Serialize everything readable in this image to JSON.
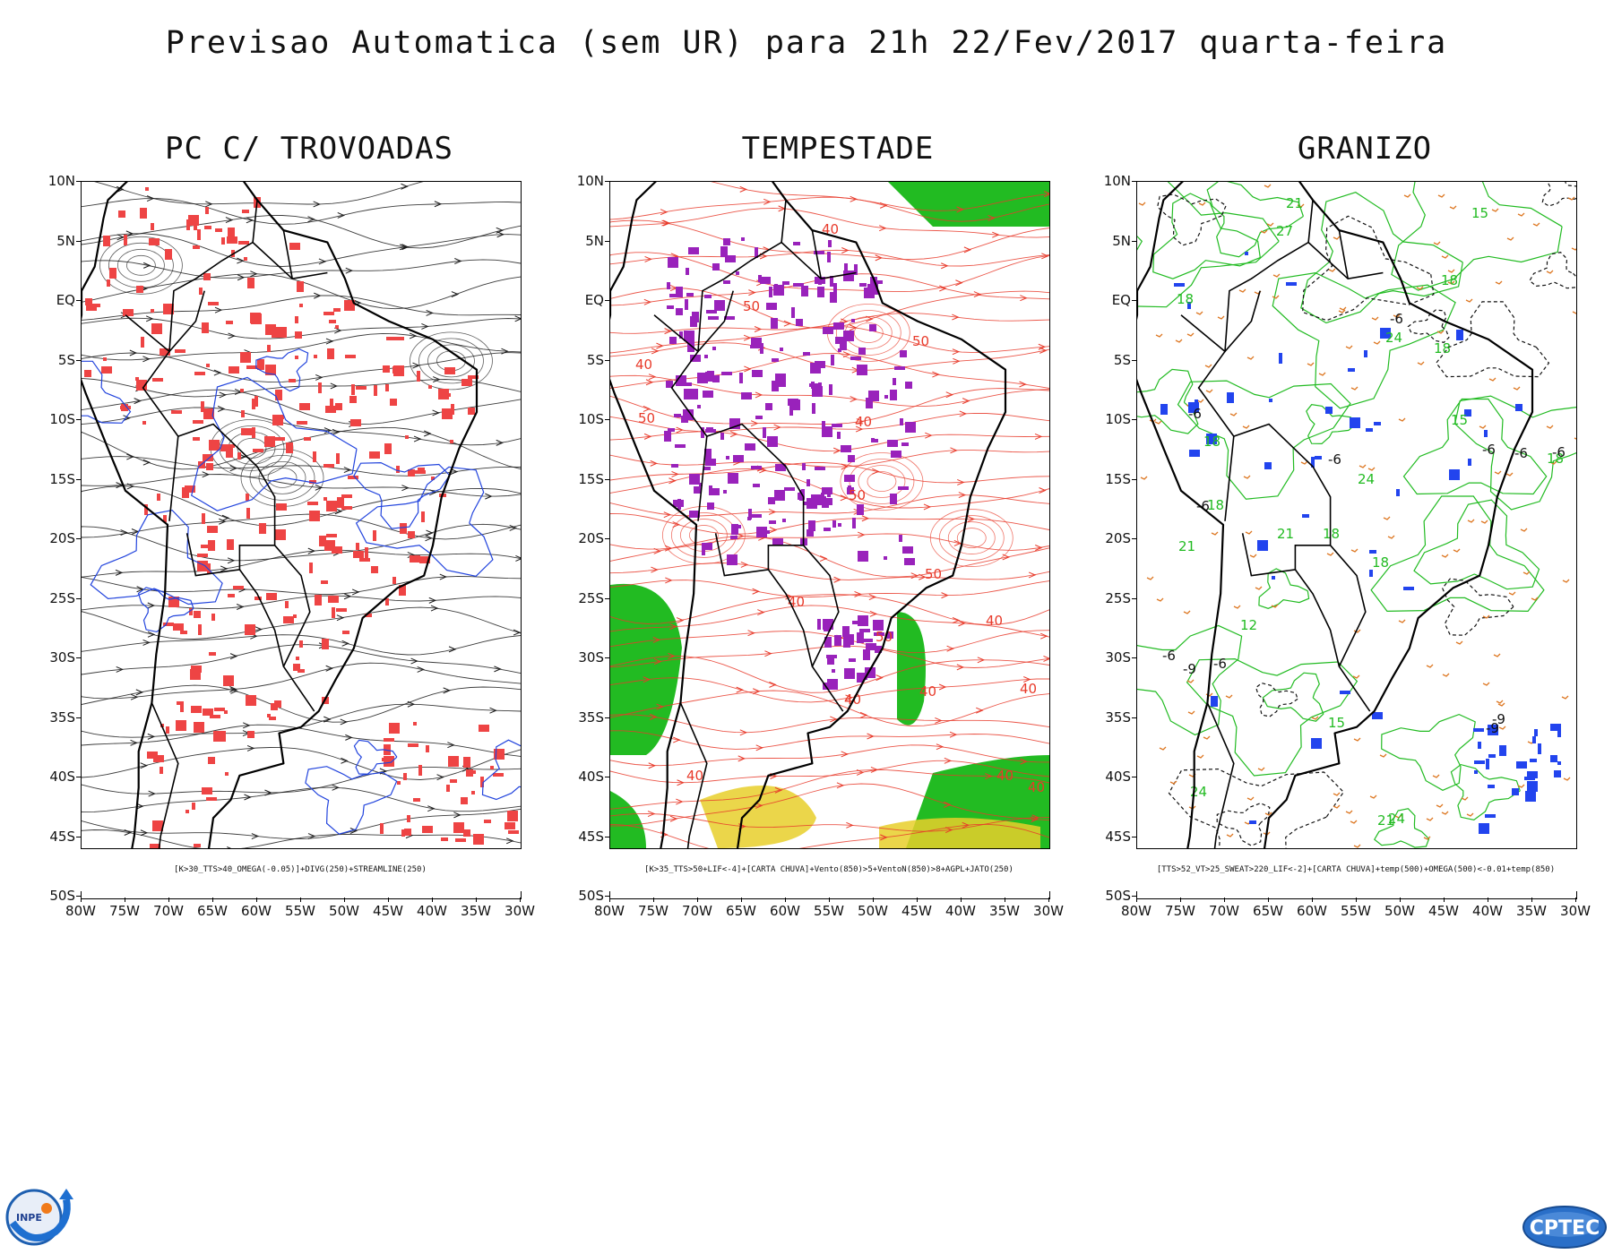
{
  "header": {
    "title": "Previsao Automatica (sem UR) para 21h 22/Fev/2017 quarta-feira"
  },
  "axes": {
    "lat_labels": [
      "10N",
      "5N",
      "EQ",
      "5S",
      "10S",
      "15S",
      "20S",
      "25S",
      "30S",
      "35S",
      "40S",
      "45S",
      "50S"
    ],
    "lon_labels": [
      "80W",
      "75W",
      "70W",
      "65W",
      "60W",
      "55W",
      "50W",
      "45W",
      "40W",
      "35W",
      "30W"
    ]
  },
  "panels": [
    {
      "title": "PC C/ TROVOADAS",
      "caption": "[K>30_TTS>40_OMEGA(-0.05)]+DIVG(250)+STREAMLINE(250)",
      "style": {
        "background": "#ffffff",
        "line_color": "#1a1a1a",
        "blob_color": "#ee4444",
        "aux_color": "#2244dd"
      },
      "contour_labels": []
    },
    {
      "title": "TEMPESTADE",
      "caption": "[K>35_TTS>50+LIF<-4]+[CARTA CHUVA]+Vento(850)>5+VentoN(850)>8+AGPL+JATO(250)",
      "style": {
        "background": "#ffffff",
        "line_color": "#e83a2a",
        "blob_color": "#9922bb",
        "aux_color": "#22bb22"
      },
      "contour_labels": [
        "50",
        "40",
        "50",
        "40",
        "50",
        "50",
        "40",
        "40",
        "50",
        "40",
        "40",
        "40",
        "40",
        "40",
        "40",
        "40",
        "50"
      ]
    },
    {
      "title": "GRANIZO",
      "caption": "[TTS>52_VT>25_SWEAT>220_LIF<-2]+[CARTA CHUVA]+temp(500)+OMEGA(500)<-0.01+temp(850)",
      "style": {
        "background": "#ffffff",
        "line_color": "#22bb22",
        "blob_color": "#2244ee",
        "aux_color": "#dd7722"
      },
      "contour_labels": [
        "21",
        "18",
        "18",
        "18",
        "18",
        "18",
        "18",
        "18",
        "21",
        "24",
        "24",
        "24",
        "27",
        "21",
        "21",
        "24",
        "15",
        "15",
        "15",
        "12",
        "18",
        "-6",
        "-6",
        "-6",
        "-6",
        "-6",
        "-6",
        "-6",
        "-9",
        "-9",
        "-9",
        "-6",
        "-6"
      ]
    }
  ],
  "logos": {
    "left": "INPE",
    "right": "CPTEC"
  }
}
